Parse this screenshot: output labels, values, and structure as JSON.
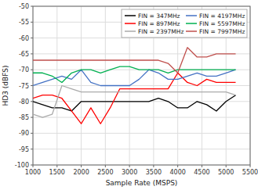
{
  "chart_data": {
    "type": "line",
    "xlabel": "Sample Rate (MSPS)",
    "ylabel": "HD3 (dBFS)",
    "x": [
      1000,
      1200,
      1400,
      1600,
      1800,
      2000,
      2200,
      2400,
      2600,
      2800,
      3000,
      3200,
      3400,
      3600,
      3800,
      4000,
      4200,
      4400,
      4600,
      4800,
      5000,
      5200
    ],
    "xlim": [
      1000,
      5500
    ],
    "ylim": [
      -100,
      -50
    ],
    "xticks": [
      1000,
      1500,
      2000,
      2500,
      3000,
      3500,
      4000,
      4500,
      5000,
      5500
    ],
    "yticks": [
      -100,
      -95,
      -90,
      -85,
      -80,
      -75,
      -70,
      -65,
      -60,
      -55,
      -50
    ],
    "grid": true,
    "legend": "upper right",
    "series": [
      {
        "name": "FIN = 347MHz",
        "color": "#000000",
        "values": [
          -80,
          -81,
          -82,
          -82,
          -83,
          -80,
          -80,
          -80,
          -80,
          -80,
          -80,
          -80,
          -80,
          -79,
          -80,
          -82,
          -82,
          -80,
          -81,
          -83,
          -80,
          -78
        ]
      },
      {
        "name": "FIN = 897MHz",
        "color": "#ff0000",
        "values": [
          -79,
          -78,
          -78,
          -79,
          -83,
          -87,
          -82,
          -87,
          -82,
          -76,
          -76,
          -76,
          -76,
          -76,
          -76,
          -71,
          -74,
          -75,
          -73,
          -74,
          -74,
          -74
        ]
      },
      {
        "name": "FIN = 2397MHz",
        "color": "#aaaaaa",
        "values": [
          -84,
          -85,
          -84,
          -75,
          -76,
          -77,
          -77,
          -77,
          -77,
          -77,
          -77,
          -77,
          -77,
          -77,
          -77,
          -77,
          -77,
          -77,
          -77,
          -77,
          -77,
          -78
        ]
      },
      {
        "name": "FIN = 4197MHz",
        "color": "#4472c4",
        "values": [
          -75,
          -74,
          -73,
          -72,
          -73,
          -70,
          -74,
          -75,
          -75,
          -75,
          -75,
          -73,
          -70,
          -71,
          -73,
          -73,
          -72,
          -71,
          -72,
          -72,
          -71,
          -70
        ]
      },
      {
        "name": "FIN = 5597MHz",
        "color": "#00b050",
        "values": [
          -71,
          -71,
          -72,
          -74,
          -71,
          -70,
          -70,
          -71,
          -70,
          -69,
          -69,
          -70,
          -70,
          -70,
          -71,
          -70,
          -70,
          -70,
          -70,
          -70,
          -70,
          -70
        ]
      },
      {
        "name": "FIN = 7997MHz",
        "color": "#c0504d",
        "values": [
          -67,
          -67,
          -67,
          -67,
          -67,
          -67,
          -67,
          -67,
          -67,
          -67,
          -67,
          -67,
          -67,
          -67,
          -68,
          -71,
          -63,
          -66,
          -66,
          -65,
          -65,
          -65
        ]
      }
    ]
  }
}
